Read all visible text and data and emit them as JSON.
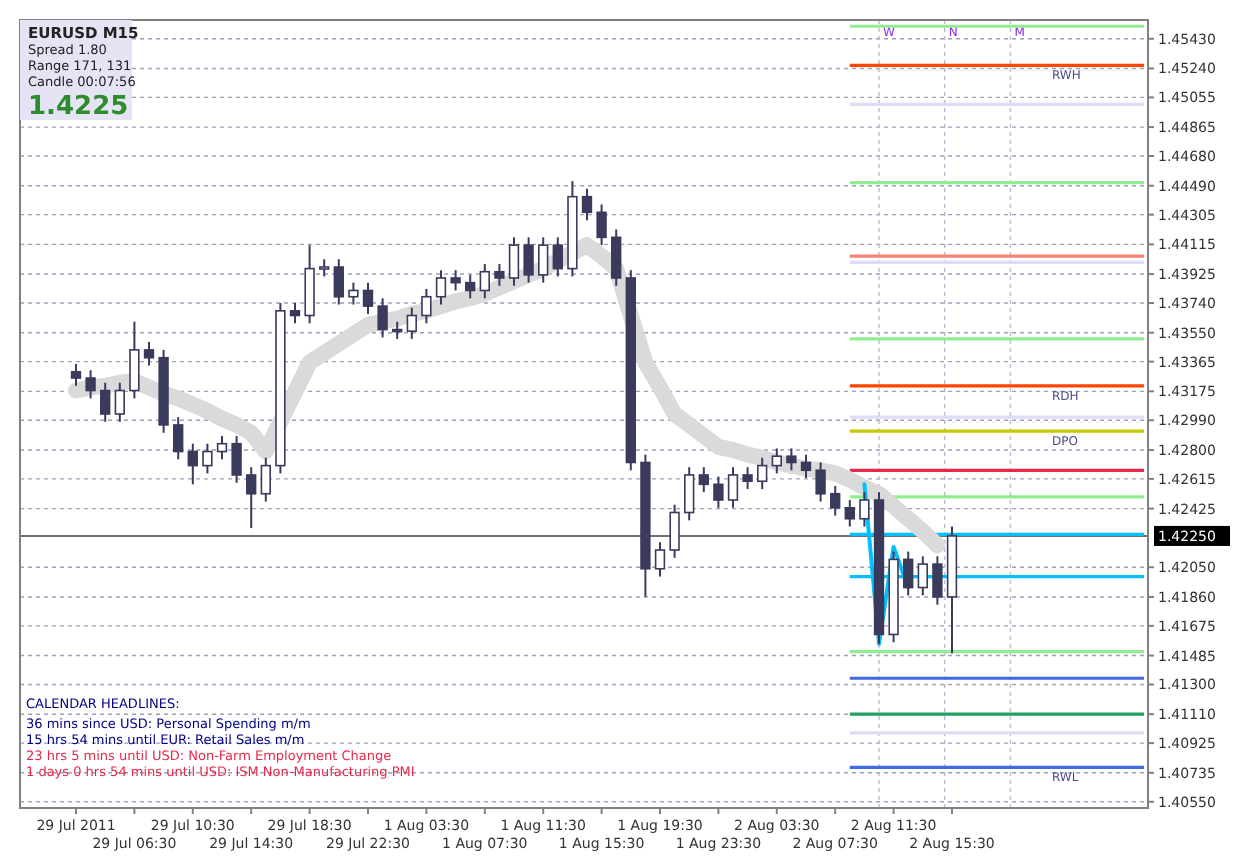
{
  "chart_data": {
    "type": "candlestick",
    "categories": [
      "29 Jul 2011",
      null,
      null,
      null,
      "29 Jul 06:30",
      null,
      null,
      null,
      "29 Jul 10:30",
      null,
      null,
      null,
      "29 Jul 14:30",
      null,
      null,
      null,
      "29 Jul 18:30",
      null,
      null,
      null,
      "29 Jul 22:30",
      null,
      null,
      null,
      "1 Aug 03:30",
      null,
      null,
      null,
      "1 Aug 07:30",
      null,
      null,
      null,
      "1 Aug 11:30",
      null,
      null,
      null,
      "1 Aug 15:30",
      null,
      null,
      null,
      "1 Aug 19:30",
      null,
      null,
      null,
      "1 Aug 23:30",
      null,
      null,
      null,
      "2 Aug 03:30",
      null,
      null,
      null,
      "2 Aug 07:30",
      null,
      null,
      null,
      "2 Aug 11:30",
      null,
      null,
      null,
      "2 Aug 15:30"
    ],
    "ohlc": [
      [
        1.433,
        1.4335,
        1.4321,
        1.4326
      ],
      [
        1.4326,
        1.4331,
        1.4313,
        1.4318
      ],
      [
        1.4318,
        1.4323,
        1.4298,
        1.4303
      ],
      [
        1.4303,
        1.4323,
        1.4298,
        1.4318
      ],
      [
        1.4318,
        1.4362,
        1.4313,
        1.4344
      ],
      [
        1.4344,
        1.4349,
        1.4334,
        1.4339
      ],
      [
        1.4339,
        1.4344,
        1.4291,
        1.4296
      ],
      [
        1.4296,
        1.4301,
        1.4274,
        1.4279
      ],
      [
        1.4279,
        1.4284,
        1.4258,
        1.427
      ],
      [
        1.427,
        1.4284,
        1.4265,
        1.4279
      ],
      [
        1.4279,
        1.4289,
        1.4274,
        1.4284
      ],
      [
        1.4284,
        1.4289,
        1.4259,
        1.4264
      ],
      [
        1.4264,
        1.4269,
        1.423,
        1.4252
      ],
      [
        1.4252,
        1.4275,
        1.4247,
        1.427
      ],
      [
        1.427,
        1.4374,
        1.4265,
        1.4369
      ],
      [
        1.4369,
        1.4374,
        1.4361,
        1.4366
      ],
      [
        1.4366,
        1.4411,
        1.4361,
        1.4396
      ],
      [
        1.4396,
        1.4402,
        1.4391,
        1.4397
      ],
      [
        1.4397,
        1.4402,
        1.4373,
        1.4378
      ],
      [
        1.4378,
        1.4387,
        1.4373,
        1.4382
      ],
      [
        1.4382,
        1.4387,
        1.4367,
        1.4372
      ],
      [
        1.4372,
        1.4377,
        1.4352,
        1.4357
      ],
      [
        1.4357,
        1.4362,
        1.4351,
        1.4356
      ],
      [
        1.4356,
        1.4371,
        1.4351,
        1.4366
      ],
      [
        1.4366,
        1.4383,
        1.4361,
        1.4378
      ],
      [
        1.4378,
        1.4395,
        1.4373,
        1.439
      ],
      [
        1.439,
        1.4395,
        1.4382,
        1.4387
      ],
      [
        1.4387,
        1.4392,
        1.4377,
        1.4382
      ],
      [
        1.4382,
        1.4399,
        1.4377,
        1.4394
      ],
      [
        1.4394,
        1.4399,
        1.4385,
        1.439
      ],
      [
        1.439,
        1.4416,
        1.4385,
        1.4411
      ],
      [
        1.4411,
        1.4416,
        1.4387,
        1.4392
      ],
      [
        1.4392,
        1.4416,
        1.4387,
        1.4411
      ],
      [
        1.4411,
        1.4416,
        1.4391,
        1.4396
      ],
      [
        1.4396,
        1.4452,
        1.4391,
        1.4442
      ],
      [
        1.4442,
        1.4447,
        1.4427,
        1.4432
      ],
      [
        1.4432,
        1.4437,
        1.4411,
        1.4416
      ],
      [
        1.4416,
        1.4421,
        1.4385,
        1.439
      ],
      [
        1.439,
        1.4395,
        1.4267,
        1.4272
      ],
      [
        1.4272,
        1.4277,
        1.4186,
        1.4204
      ],
      [
        1.4204,
        1.4221,
        1.4199,
        1.4216
      ],
      [
        1.4216,
        1.4245,
        1.4211,
        1.424
      ],
      [
        1.424,
        1.4269,
        1.4235,
        1.4264
      ],
      [
        1.4264,
        1.4269,
        1.4253,
        1.4258
      ],
      [
        1.4258,
        1.4263,
        1.4243,
        1.4248
      ],
      [
        1.4248,
        1.4269,
        1.4243,
        1.4264
      ],
      [
        1.4264,
        1.4269,
        1.4255,
        1.426
      ],
      [
        1.426,
        1.4275,
        1.4255,
        1.427
      ],
      [
        1.427,
        1.4281,
        1.4265,
        1.4276
      ],
      [
        1.4276,
        1.4281,
        1.4267,
        1.4272
      ],
      [
        1.4272,
        1.4277,
        1.4262,
        1.4267
      ],
      [
        1.4267,
        1.4272,
        1.4247,
        1.4252
      ],
      [
        1.4252,
        1.4257,
        1.4238,
        1.4243
      ],
      [
        1.4243,
        1.4248,
        1.4231,
        1.4236
      ],
      [
        1.4236,
        1.4253,
        1.4231,
        1.4248
      ],
      [
        1.4248,
        1.4253,
        1.4156,
        1.4162
      ],
      [
        1.4162,
        1.4215,
        1.4157,
        1.421
      ],
      [
        1.421,
        1.4215,
        1.4187,
        1.4192
      ],
      [
        1.4192,
        1.4212,
        1.4187,
        1.4207
      ],
      [
        1.4207,
        1.4212,
        1.4181,
        1.4186
      ],
      [
        1.4186,
        1.4231,
        1.415,
        1.4225
      ]
    ],
    "series": [
      {
        "type": "line",
        "color": "#dadada",
        "values": [
          1.4318,
          1.432,
          1.4321,
          1.4323,
          1.4324,
          1.432,
          1.4316,
          1.4313,
          1.4309,
          1.4305,
          1.43,
          1.4296,
          1.4291,
          1.4279,
          1.4298,
          1.4317,
          1.4336,
          1.4342,
          1.4348,
          1.4354,
          1.436,
          1.4362,
          1.4364,
          1.4367,
          1.4369,
          1.4372,
          1.4375,
          1.4377,
          1.438,
          1.4384,
          1.4388,
          1.4392,
          1.4396,
          1.4401,
          1.4406,
          1.4411,
          1.4404,
          1.4396,
          1.4366,
          1.4336,
          1.432,
          1.4303,
          1.4296,
          1.4289,
          1.4282,
          1.428,
          1.4277,
          1.4275,
          1.4272,
          1.427,
          1.4268,
          1.4267,
          1.4265,
          1.4261,
          1.4256,
          1.4252,
          1.4244,
          1.4236,
          1.4228,
          1.4219,
          null
        ]
      },
      {
        "type": "line",
        "color": "#00bfff",
        "values": [
          null,
          null,
          null,
          null,
          null,
          null,
          null,
          null,
          null,
          null,
          null,
          null,
          null,
          null,
          null,
          null,
          null,
          null,
          null,
          null,
          null,
          null,
          null,
          null,
          null,
          null,
          null,
          null,
          null,
          null,
          null,
          null,
          null,
          null,
          null,
          null,
          null,
          null,
          null,
          null,
          null,
          null,
          null,
          null,
          null,
          null,
          null,
          null,
          null,
          null,
          null,
          null,
          null,
          null,
          1.4258,
          1.4156,
          1.4218,
          1.4192,
          null,
          null,
          null
        ]
      }
    ],
    "ylim": [
      1.4051,
      1.4555
    ],
    "yticks": [
      {
        "value": 1.4543,
        "label": "1.45430"
      },
      {
        "value": 1.4524,
        "label": "1.45240"
      },
      {
        "value": 1.45055,
        "label": "1.45055"
      },
      {
        "value": 1.44865,
        "label": "1.44865"
      },
      {
        "value": 1.4468,
        "label": "1.44680"
      },
      {
        "value": 1.4449,
        "label": "1.44490"
      },
      {
        "value": 1.44305,
        "label": "1.44305"
      },
      {
        "value": 1.44115,
        "label": "1.44115"
      },
      {
        "value": 1.43925,
        "label": "1.43925"
      },
      {
        "value": 1.4374,
        "label": "1.43740"
      },
      {
        "value": 1.4355,
        "label": "1.43550"
      },
      {
        "value": 1.43365,
        "label": "1.43365"
      },
      {
        "value": 1.43175,
        "label": "1.43175"
      },
      {
        "value": 1.4299,
        "label": "1.42990"
      },
      {
        "value": 1.428,
        "label": "1.42800"
      },
      {
        "value": 1.42615,
        "label": "1.42615"
      },
      {
        "value": 1.42425,
        "label": "1.42425"
      },
      {
        "value": 1.4205,
        "label": "1.42050"
      },
      {
        "value": 1.4186,
        "label": "1.41860"
      },
      {
        "value": 1.41675,
        "label": "1.41675"
      },
      {
        "value": 1.41485,
        "label": "1.41485"
      },
      {
        "value": 1.413,
        "label": "1.41300"
      },
      {
        "value": 1.4111,
        "label": "1.41110"
      },
      {
        "value": 1.40925,
        "label": "1.40925"
      },
      {
        "value": 1.40735,
        "label": "1.40735"
      },
      {
        "value": 1.4055,
        "label": "1.40550"
      }
    ],
    "grid": "y",
    "ref_lines": [
      {
        "axis": "y",
        "value": 1.4225,
        "color": "#707070",
        "label": "1.42250",
        "line_style": "solid"
      },
      {
        "axis": "y",
        "value": 1.4551,
        "color": "#90ee90"
      },
      {
        "axis": "y",
        "value": 1.4526,
        "color": "#ff4500",
        "label": "RWH"
      },
      {
        "axis": "y",
        "value": 1.4501,
        "color": "#dcdcf5"
      },
      {
        "axis": "y",
        "value": 1.4451,
        "color": "#90ee90"
      },
      {
        "axis": "y",
        "value": 1.4404,
        "color": "#fa8072"
      },
      {
        "axis": "y",
        "value": 1.44,
        "color": "#dcdcf5"
      },
      {
        "axis": "y",
        "value": 1.4351,
        "color": "#90ee90"
      },
      {
        "axis": "y",
        "value": 1.4321,
        "color": "#ff4500",
        "label": "RDH"
      },
      {
        "axis": "y",
        "value": 1.4301,
        "color": "#dcdcf5"
      },
      {
        "axis": "y",
        "value": 1.4292,
        "color": "#c8c800",
        "label": "DPO"
      },
      {
        "axis": "y",
        "value": 1.4267,
        "color": "#e8284a"
      },
      {
        "axis": "y",
        "value": 1.425,
        "color": "#90ee90"
      },
      {
        "axis": "y",
        "value": 1.4226,
        "color": "#00bfff"
      },
      {
        "axis": "y",
        "value": 1.4199,
        "color": "#00bfff"
      },
      {
        "axis": "y",
        "value": 1.4151,
        "color": "#90ee90"
      },
      {
        "axis": "y",
        "value": 1.4134,
        "color": "#4169e1"
      },
      {
        "axis": "y",
        "value": 1.4111,
        "color": "#20a060"
      },
      {
        "axis": "y",
        "value": 1.4099,
        "color": "#dcdcf5"
      },
      {
        "axis": "y",
        "value": 1.4077,
        "color": "#4169e1",
        "label": "RWL"
      }
    ],
    "annotations": [
      "EURUSD   M15",
      "Spread  1.80",
      "Range  171, 131",
      "Candle  00:07:56",
      "1.4225",
      "CALENDAR HEADLINES:",
      "36 mins since USD: Personal Spending m/m",
      "15 hrs 54 mins until EUR: Retail Sales m/m",
      "23 hrs 5 mins until USD: Non-Farm Employment Change",
      "1 days 0 hrs 54 mins until USD: ISM Non-Manufacturing PMI",
      "W",
      "N",
      "M"
    ]
  }
}
